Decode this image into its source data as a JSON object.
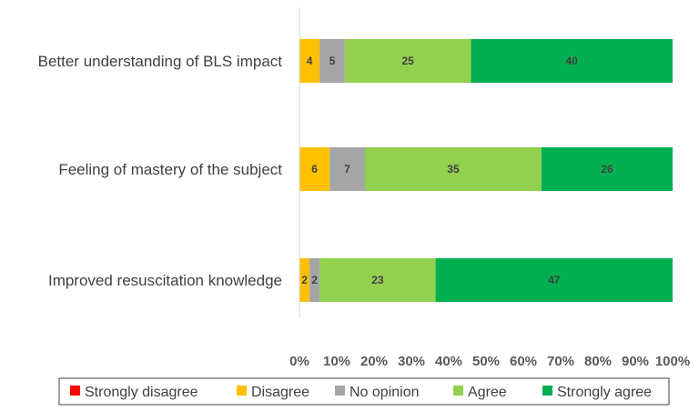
{
  "chart_data": {
    "type": "bar",
    "orientation": "horizontal",
    "stacked": "percent",
    "categories": [
      "Better understanding of BLS impact",
      "Feeling of mastery of the subject",
      "Improved resuscitation knowledge"
    ],
    "series": [
      {
        "name": "Strongly disagree",
        "color": "#FF0000",
        "values": [
          0,
          0,
          0
        ]
      },
      {
        "name": "Disagree",
        "color": "#FFC000",
        "values": [
          4,
          6,
          2
        ]
      },
      {
        "name": "No opinion",
        "color": "#A5A5A5",
        "values": [
          5,
          7,
          2
        ]
      },
      {
        "name": "Agree",
        "color": "#92D050",
        "values": [
          25,
          35,
          23
        ]
      },
      {
        "name": "Strongly agree",
        "color": "#00B050",
        "values": [
          40,
          26,
          47
        ]
      }
    ],
    "x_ticks": [
      "0%",
      "10%",
      "20%",
      "30%",
      "40%",
      "50%",
      "60%",
      "70%",
      "80%",
      "90%",
      "100%"
    ],
    "xlim": [
      0,
      100
    ],
    "title": "",
    "xlabel": "",
    "ylabel": "",
    "grid": false,
    "legend_position": "bottom"
  }
}
